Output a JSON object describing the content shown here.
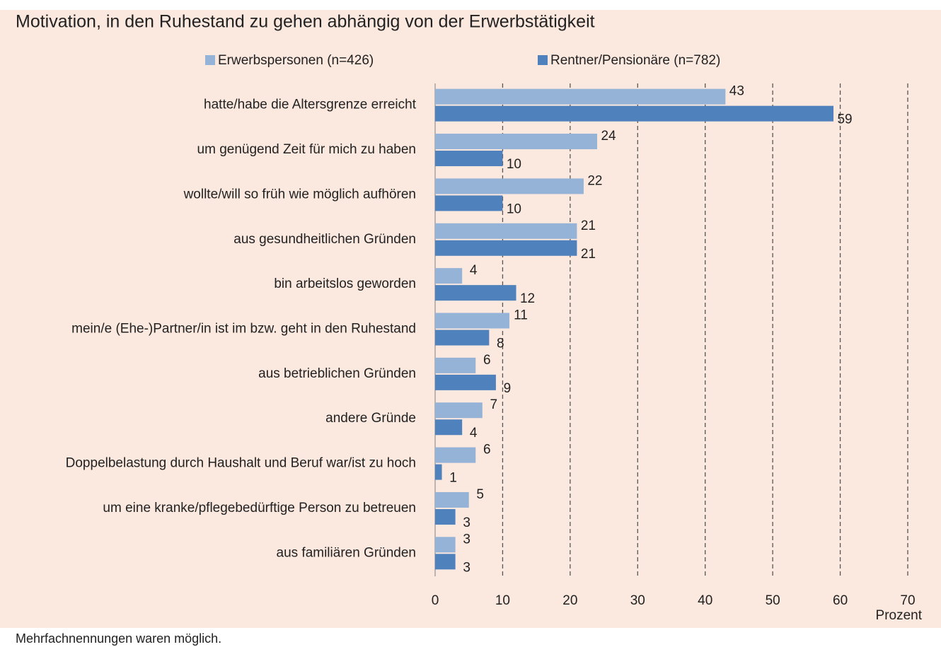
{
  "chart_data": {
    "type": "bar",
    "orientation": "horizontal",
    "title": "Motivation, in den Ruhestand zu gehen abhängig von der Erwerbstätigkeit",
    "categories": [
      "hatte/habe die Altersgrenze erreicht",
      "um genügend Zeit für mich zu haben",
      "wollte/will so früh wie möglich aufhören",
      "aus gesundheitlichen Gründen",
      "bin arbeitslos geworden",
      "mein/e (Ehe-)Partner/in ist im bzw. geht in den Ruhestand",
      "aus betrieblichen Gründen",
      "andere Gründe",
      "Doppelbelastung durch Haushalt und Beruf war/ist zu hoch",
      "um eine kranke/pflegebedürftige Person zu betreuen",
      "aus familiären Gründen"
    ],
    "series": [
      {
        "name": "Erwerbspersonen (n=426)",
        "color": "#95b3d7",
        "values": [
          43,
          24,
          22,
          21,
          4,
          11,
          6,
          7,
          6,
          5,
          3
        ]
      },
      {
        "name": "Rentner/Pensionäre (n=782)",
        "color": "#4f81bd",
        "values": [
          59,
          10,
          10,
          21,
          12,
          8,
          9,
          4,
          1,
          3,
          3
        ]
      }
    ],
    "xlim": [
      0,
      70
    ],
    "xticks": [
      0,
      10,
      20,
      30,
      40,
      50,
      60,
      70
    ],
    "x_label": "Prozent",
    "grid": true,
    "legend": "top",
    "note": "Mehrfachnennungen waren möglich."
  }
}
